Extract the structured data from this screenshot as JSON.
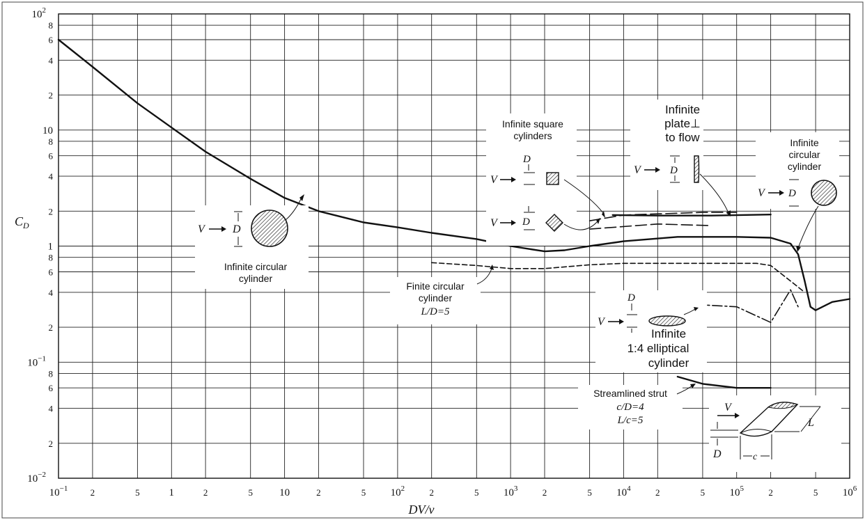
{
  "chart_data": {
    "type": "line",
    "x_scale": "log",
    "y_scale": "log",
    "xlim": [
      0.1,
      1000000
    ],
    "ylim": [
      0.01,
      100
    ],
    "grid": true,
    "xlabel": "DV/ν",
    "ylabel": "C_D",
    "x_ticks": [
      {
        "v": 0.1,
        "base": "10",
        "sup": "−1"
      },
      {
        "v": 0.2,
        "base": "2"
      },
      {
        "v": 0.5,
        "base": "5"
      },
      {
        "v": 1,
        "base": "1"
      },
      {
        "v": 2,
        "base": "2"
      },
      {
        "v": 5,
        "base": "5"
      },
      {
        "v": 10,
        "base": "10"
      },
      {
        "v": 20,
        "base": "2"
      },
      {
        "v": 50,
        "base": "5"
      },
      {
        "v": 100,
        "base": "10",
        "sup": "2"
      },
      {
        "v": 200,
        "base": "2"
      },
      {
        "v": 500,
        "base": "5"
      },
      {
        "v": 1000,
        "base": "10",
        "sup": "3"
      },
      {
        "v": 2000,
        "base": "2"
      },
      {
        "v": 5000,
        "base": "5"
      },
      {
        "v": 10000,
        "base": "10",
        "sup": "4"
      },
      {
        "v": 20000,
        "base": "2"
      },
      {
        "v": 50000,
        "base": "5"
      },
      {
        "v": 100000,
        "base": "10",
        "sup": "5"
      },
      {
        "v": 200000,
        "base": "2"
      },
      {
        "v": 500000,
        "base": "5"
      },
      {
        "v": 1000000,
        "base": "10",
        "sup": "6"
      }
    ],
    "y_ticks": [
      {
        "v": 100,
        "base": "10",
        "sup": "2"
      },
      {
        "v": 80,
        "base": "8"
      },
      {
        "v": 60,
        "base": "6"
      },
      {
        "v": 40,
        "base": "4"
      },
      {
        "v": 20,
        "base": "2"
      },
      {
        "v": 10,
        "base": "10"
      },
      {
        "v": 8,
        "base": "8"
      },
      {
        "v": 6,
        "base": "6"
      },
      {
        "v": 4,
        "base": "4"
      },
      {
        "v": 2,
        "base": "2"
      },
      {
        "v": 1,
        "base": "1"
      },
      {
        "v": 0.8,
        "base": "8"
      },
      {
        "v": 0.6,
        "base": "6"
      },
      {
        "v": 0.4,
        "base": "4"
      },
      {
        "v": 0.2,
        "base": "2"
      },
      {
        "v": 0.1,
        "base": "10",
        "sup": "−1"
      },
      {
        "v": 0.08,
        "base": "8"
      },
      {
        "v": 0.06,
        "base": "6"
      },
      {
        "v": 0.04,
        "base": "4"
      },
      {
        "v": 0.02,
        "base": "2"
      },
      {
        "v": 0.01,
        "base": "10",
        "sup": "−2"
      }
    ],
    "series": [
      {
        "id": "infinite-circular-cylinder-curve",
        "style": "solid",
        "x": [
          0.1,
          0.2,
          0.5,
          1,
          2,
          5,
          10,
          20,
          50,
          100,
          200,
          500,
          1000,
          2000,
          3000,
          5000,
          10000,
          30000,
          100000,
          200000,
          300000,
          350000,
          400000,
          450000,
          500000
        ],
        "y": [
          60,
          35,
          17,
          10.5,
          6.5,
          3.8,
          2.6,
          2.0,
          1.6,
          1.45,
          1.3,
          1.15,
          1.0,
          0.9,
          0.92,
          1.0,
          1.1,
          1.2,
          1.2,
          1.18,
          1.05,
          0.85,
          0.5,
          0.3,
          0.28
        ]
      },
      {
        "id": "infinite-circular-cylinder-tail",
        "style": "solid",
        "x": [
          500000,
          700000,
          1000000
        ],
        "y": [
          0.28,
          0.33,
          0.35
        ]
      },
      {
        "id": "finite-circular-cylinder-curve",
        "style": "dashed",
        "x": [
          200,
          500,
          1000,
          2000,
          5000,
          10000,
          50000,
          150000,
          200000,
          300000,
          400000
        ],
        "y": [
          0.72,
          0.68,
          0.64,
          0.64,
          0.69,
          0.71,
          0.71,
          0.71,
          0.68,
          0.5,
          0.4
        ]
      },
      {
        "id": "square-cylinder-curve",
        "style": "long-dash",
        "x": [
          5000,
          10000,
          50000,
          100000
        ],
        "y": [
          1.65,
          1.85,
          1.95,
          1.95
        ]
      },
      {
        "id": "diamond-cylinder-curve",
        "style": "long-dash",
        "x": [
          5000,
          20000,
          60000
        ],
        "y": [
          1.4,
          1.55,
          1.5
        ]
      },
      {
        "id": "plate-curve",
        "style": "solid",
        "x": [
          8000,
          20000,
          60000,
          200000
        ],
        "y": [
          1.85,
          1.83,
          1.83,
          1.87
        ]
      },
      {
        "id": "elliptical-cylinder-curve",
        "style": "dash-dot",
        "x": [
          30000,
          100000,
          200000,
          300000,
          350000
        ],
        "y": [
          0.32,
          0.3,
          0.22,
          0.42,
          0.3
        ]
      },
      {
        "id": "streamlined-strut-curve",
        "style": "solid",
        "x": [
          30000,
          50000,
          100000,
          200000
        ],
        "y": [
          0.075,
          0.065,
          0.06,
          0.06
        ]
      }
    ],
    "annotations": {
      "infinite_circular_cylinder_left": [
        "Infinite circular",
        "cylinder"
      ],
      "infinite_square_cylinders": [
        "Infinite square",
        "cylinders"
      ],
      "infinite_plate": [
        "Infinite",
        "plate⊥",
        "to flow"
      ],
      "infinite_circular_cylinder_right": [
        "Infinite",
        "circular",
        "cylinder"
      ],
      "finite_circular_cylinder": [
        "Finite circular",
        "cylinder",
        "L/D=5"
      ],
      "infinite_elliptical_cylinder": [
        "Infinite",
        "1:4 elliptical",
        "cylinder"
      ],
      "streamlined_strut": [
        "Streamlined strut",
        "c/D=4",
        "L/c=5"
      ],
      "symbol_V": "V",
      "symbol_D": "D",
      "symbol_L": "L",
      "symbol_c": "c"
    }
  }
}
